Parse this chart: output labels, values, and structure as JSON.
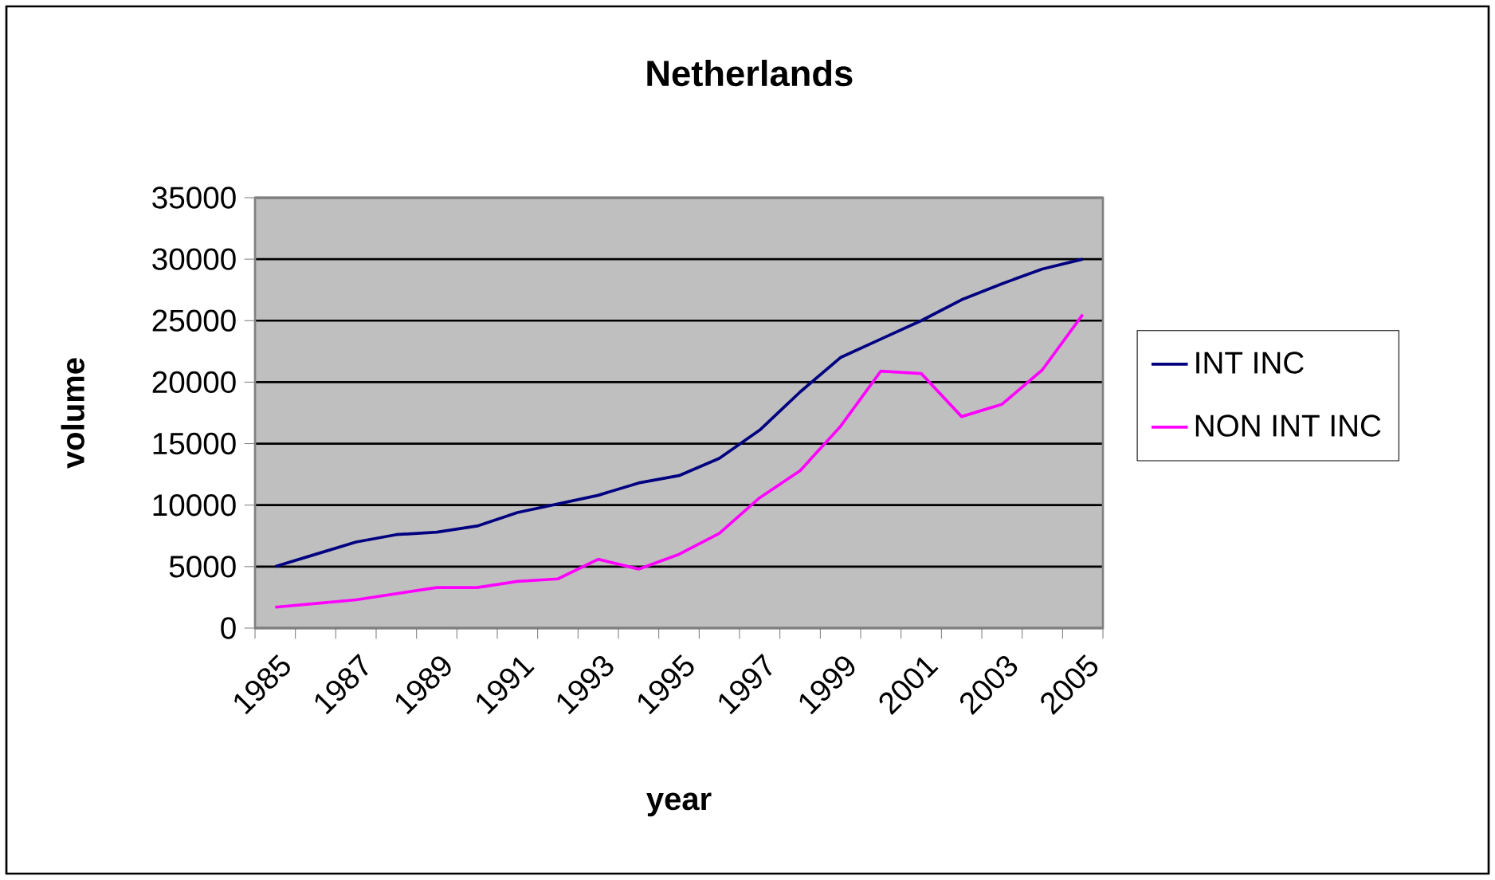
{
  "chart_data": {
    "type": "line",
    "title": "Netherlands",
    "xlabel": "year",
    "ylabel": "volume",
    "categories": [
      "1985",
      null,
      "1987",
      null,
      "1989",
      null,
      "1991",
      null,
      "1993",
      null,
      "1995",
      null,
      "1997",
      null,
      "1999",
      null,
      "2001",
      null,
      "2003",
      null,
      "2005"
    ],
    "series": [
      {
        "name": "INT INC",
        "color": "#000080",
        "values": [
          5000,
          6000,
          7000,
          7600,
          7800,
          8300,
          9400,
          10100,
          10800,
          11800,
          12400,
          13800,
          16100,
          19200,
          22000,
          23500,
          25000,
          26700,
          28000,
          29200,
          30000
        ]
      },
      {
        "name": "NON INT INC",
        "color": "#ff00ff",
        "values": [
          1700,
          2000,
          2300,
          2800,
          3300,
          3300,
          3800,
          4000,
          5600,
          4800,
          6000,
          7700,
          10600,
          12800,
          16400,
          20900,
          20700,
          17200,
          18200,
          21000,
          25500
        ]
      }
    ],
    "ylim": [
      0,
      35000
    ],
    "yticks": [
      0,
      5000,
      10000,
      15000,
      20000,
      25000,
      30000,
      35000
    ],
    "grid": "y",
    "legend": "right",
    "marker": "none",
    "line_style": "solid"
  }
}
